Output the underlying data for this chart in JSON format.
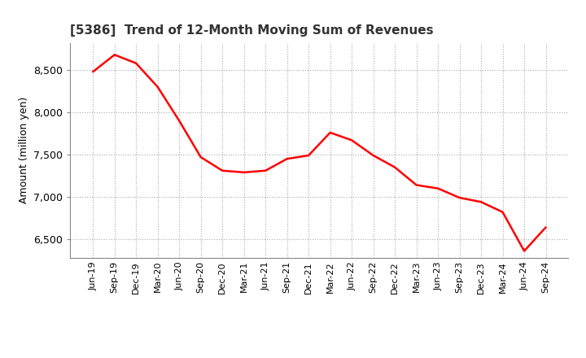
{
  "title": "[5386]  Trend of 12-Month Moving Sum of Revenues",
  "ylabel": "Amount (million yen)",
  "line_color": "#FF0000",
  "line_width": 1.8,
  "background_color": "#FFFFFF",
  "grid_color": "#AAAAAA",
  "ylim": [
    6280,
    8820
  ],
  "yticks": [
    6500,
    7000,
    7500,
    8000,
    8500
  ],
  "x_labels": [
    "Jun-19",
    "Sep-19",
    "Dec-19",
    "Mar-20",
    "Jun-20",
    "Sep-20",
    "Dec-20",
    "Mar-21",
    "Jun-21",
    "Sep-21",
    "Dec-21",
    "Mar-22",
    "Jun-22",
    "Sep-22",
    "Dec-22",
    "Mar-23",
    "Jun-23",
    "Sep-23",
    "Dec-23",
    "Mar-24",
    "Jun-24",
    "Sep-24"
  ],
  "values": [
    8480,
    8680,
    8580,
    8300,
    7900,
    7470,
    7310,
    7290,
    7310,
    7450,
    7490,
    7760,
    7670,
    7490,
    7350,
    7140,
    7100,
    6990,
    6940,
    6820,
    6360,
    6640
  ]
}
